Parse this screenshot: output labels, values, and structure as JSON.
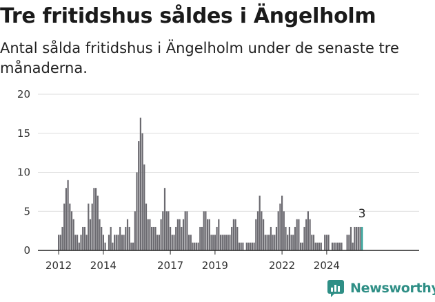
{
  "title": "Tre fritidshus såldes i Ängelholm",
  "subtitle": "Antal sålda fritidshus i Ängelholm under de senaste tre månaderna.",
  "brand": {
    "name": "Newsworthy",
    "icon": "newsworthy-logo-icon"
  },
  "colors": {
    "bar": "#6b6a70",
    "highlight": "#2a9d94",
    "grid": "#dddddd",
    "axis": "#222222"
  },
  "chart_data": {
    "type": "bar",
    "x_start": "2012-01",
    "x_ticks": [
      "2012",
      "2014",
      "2017",
      "2019",
      "2022",
      "2024"
    ],
    "y_ticks": [
      0,
      5,
      10,
      15,
      20
    ],
    "ylim": [
      0,
      20
    ],
    "annotation": "3",
    "highlight_last": true,
    "values": [
      2,
      2,
      3,
      6,
      8,
      9,
      6,
      5,
      4,
      2,
      2,
      1,
      2,
      3,
      3,
      2,
      6,
      4,
      6,
      8,
      8,
      7,
      4,
      3,
      2,
      1,
      0,
      2,
      3,
      1,
      2,
      2,
      2,
      3,
      2,
      2,
      3,
      4,
      3,
      1,
      1,
      5,
      10,
      14,
      17,
      15,
      11,
      6,
      4,
      4,
      3,
      3,
      3,
      2,
      2,
      4,
      5,
      8,
      5,
      5,
      3,
      2,
      2,
      3,
      4,
      4,
      3,
      4,
      5,
      5,
      2,
      2,
      1,
      1,
      1,
      1,
      3,
      3,
      5,
      5,
      4,
      4,
      2,
      2,
      2,
      3,
      4,
      2,
      2,
      2,
      2,
      2,
      2,
      3,
      4,
      4,
      3,
      1,
      1,
      1,
      0,
      1,
      1,
      1,
      1,
      1,
      4,
      5,
      7,
      5,
      4,
      2,
      2,
      2,
      3,
      2,
      2,
      3,
      5,
      6,
      7,
      5,
      3,
      2,
      3,
      2,
      2,
      3,
      4,
      4,
      1,
      1,
      3,
      4,
      5,
      4,
      2,
      2,
      1,
      1,
      1,
      1,
      0,
      2,
      2,
      2,
      0,
      1,
      1,
      1,
      1,
      1,
      1,
      0,
      0,
      2,
      2,
      3,
      1,
      3,
      3,
      3,
      3,
      3
    ]
  }
}
